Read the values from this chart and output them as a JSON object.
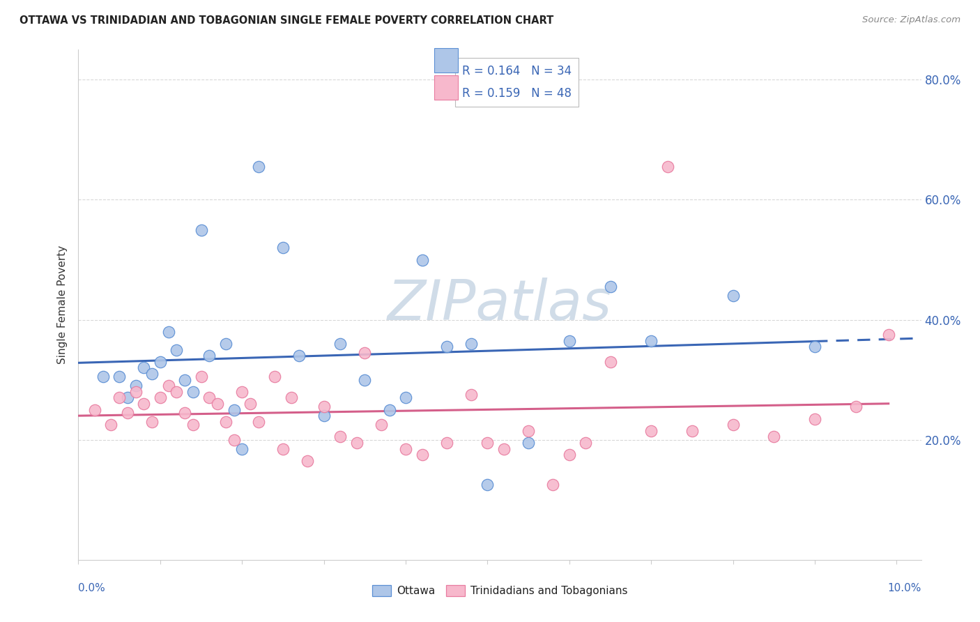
{
  "title": "OTTAWA VS TRINIDADIAN AND TOBAGONIAN SINGLE FEMALE POVERTY CORRELATION CHART",
  "source": "Source: ZipAtlas.com",
  "ylabel": "Single Female Poverty",
  "legend_ottawa": "Ottawa",
  "legend_trinidadian": "Trinidadians and Tobagonians",
  "ottawa_R": "0.164",
  "ottawa_N": "34",
  "trinidad_R": "0.159",
  "trinidad_N": "48",
  "ottawa_color": "#aec6e8",
  "ottawa_edge_color": "#5b8fd4",
  "ottawa_line_color": "#3a66b5",
  "trinidad_color": "#f7b8cc",
  "trinidad_edge_color": "#e87ca0",
  "trinidad_line_color": "#d45f8a",
  "background_color": "#ffffff",
  "grid_color": "#d8d8d8",
  "watermark_color": "#d0dce8",
  "ottawa_x": [
    0.003,
    0.005,
    0.006,
    0.007,
    0.008,
    0.009,
    0.01,
    0.011,
    0.012,
    0.013,
    0.014,
    0.015,
    0.016,
    0.018,
    0.019,
    0.02,
    0.022,
    0.025,
    0.027,
    0.03,
    0.032,
    0.035,
    0.038,
    0.04,
    0.042,
    0.045,
    0.048,
    0.05,
    0.055,
    0.06,
    0.065,
    0.07,
    0.08,
    0.09
  ],
  "ottawa_y": [
    0.305,
    0.305,
    0.27,
    0.29,
    0.32,
    0.31,
    0.33,
    0.38,
    0.35,
    0.3,
    0.28,
    0.55,
    0.34,
    0.36,
    0.25,
    0.185,
    0.655,
    0.52,
    0.34,
    0.24,
    0.36,
    0.3,
    0.25,
    0.27,
    0.5,
    0.355,
    0.36,
    0.125,
    0.195,
    0.365,
    0.455,
    0.365,
    0.44,
    0.355
  ],
  "trinidad_x": [
    0.002,
    0.004,
    0.005,
    0.006,
    0.007,
    0.008,
    0.009,
    0.01,
    0.011,
    0.012,
    0.013,
    0.014,
    0.015,
    0.016,
    0.017,
    0.018,
    0.019,
    0.02,
    0.021,
    0.022,
    0.024,
    0.025,
    0.026,
    0.028,
    0.03,
    0.032,
    0.034,
    0.035,
    0.037,
    0.04,
    0.042,
    0.045,
    0.048,
    0.05,
    0.052,
    0.055,
    0.058,
    0.06,
    0.062,
    0.065,
    0.07,
    0.072,
    0.075,
    0.08,
    0.085,
    0.09,
    0.095,
    0.099
  ],
  "trinidad_y": [
    0.25,
    0.225,
    0.27,
    0.245,
    0.28,
    0.26,
    0.23,
    0.27,
    0.29,
    0.28,
    0.245,
    0.225,
    0.305,
    0.27,
    0.26,
    0.23,
    0.2,
    0.28,
    0.26,
    0.23,
    0.305,
    0.185,
    0.27,
    0.165,
    0.255,
    0.205,
    0.195,
    0.345,
    0.225,
    0.185,
    0.175,
    0.195,
    0.275,
    0.195,
    0.185,
    0.215,
    0.125,
    0.175,
    0.195,
    0.33,
    0.215,
    0.655,
    0.215,
    0.225,
    0.205,
    0.235,
    0.255,
    0.375
  ],
  "ylim": [
    0.0,
    0.85
  ],
  "xlim": [
    0.0,
    0.103
  ],
  "yticks": [
    0.0,
    0.2,
    0.4,
    0.6,
    0.8
  ],
  "ytick_labels": [
    "",
    "20.0%",
    "40.0%",
    "60.0%",
    "80.0%"
  ],
  "xtick_count": 11
}
